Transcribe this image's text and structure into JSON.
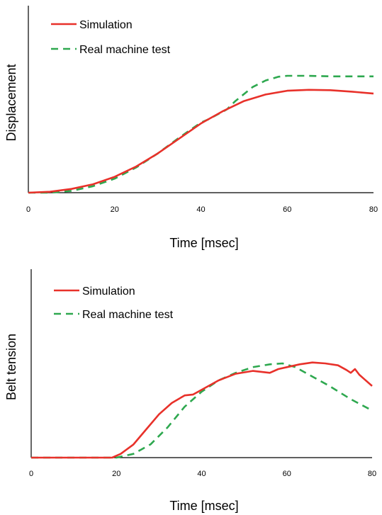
{
  "chart_data": [
    {
      "type": "line",
      "title": "",
      "xlabel": "Time [msec]",
      "ylabel": "Displacement",
      "xlim": [
        0,
        80
      ],
      "ylim": [
        0,
        1
      ],
      "xticks": [
        "0",
        "20",
        "40",
        "60",
        "80"
      ],
      "grid": false,
      "legend_position": "top-left",
      "series": [
        {
          "name": "Simulation",
          "style": "solid",
          "color": "#e8312a",
          "x": [
            0,
            5,
            10,
            15,
            20,
            25,
            30,
            35,
            40,
            45,
            50,
            55,
            60,
            65,
            70,
            75,
            80
          ],
          "y": [
            0,
            0.005,
            0.02,
            0.045,
            0.085,
            0.14,
            0.21,
            0.29,
            0.37,
            0.435,
            0.49,
            0.525,
            0.545,
            0.55,
            0.548,
            0.54,
            0.53
          ]
        },
        {
          "name": "Real machine test",
          "style": "dashed",
          "color": "#2ea84f",
          "x": [
            0,
            5,
            10,
            15,
            20,
            25,
            30,
            35,
            40,
            42,
            46,
            48,
            52,
            55,
            58,
            60,
            65,
            70,
            75,
            80
          ],
          "y": [
            0,
            0,
            0.01,
            0.035,
            0.075,
            0.135,
            0.21,
            0.295,
            0.375,
            0.395,
            0.445,
            0.49,
            0.565,
            0.6,
            0.62,
            0.625,
            0.625,
            0.622,
            0.622,
            0.622
          ]
        }
      ]
    },
    {
      "type": "line",
      "title": "",
      "xlabel": "Time [msec]",
      "ylabel": "Belt tension",
      "xlim": [
        0,
        80
      ],
      "ylim": [
        0,
        1
      ],
      "xticks": [
        "0",
        "20",
        "40",
        "60",
        "80"
      ],
      "grid": false,
      "legend_position": "top-left",
      "series": [
        {
          "name": "Simulation",
          "style": "solid",
          "color": "#e8312a",
          "x": [
            0,
            19,
            21,
            24,
            27,
            30,
            33,
            36,
            38,
            40,
            44,
            48,
            52,
            56,
            58,
            60,
            63,
            66,
            69,
            72,
            74,
            75,
            76,
            77,
            78,
            80
          ],
          "y": [
            0,
            0,
            0.02,
            0.07,
            0.15,
            0.23,
            0.29,
            0.33,
            0.335,
            0.36,
            0.41,
            0.445,
            0.46,
            0.45,
            0.47,
            0.48,
            0.495,
            0.505,
            0.5,
            0.49,
            0.465,
            0.45,
            0.47,
            0.44,
            0.42,
            0.38
          ]
        },
        {
          "name": "Real machine test",
          "style": "dashed",
          "color": "#2ea84f",
          "x": [
            0,
            20,
            24,
            28,
            32,
            36,
            40,
            44,
            48,
            52,
            56,
            59,
            62,
            66,
            70,
            75,
            80
          ],
          "y": [
            0,
            0,
            0.02,
            0.07,
            0.16,
            0.27,
            0.35,
            0.41,
            0.45,
            0.48,
            0.495,
            0.5,
            0.48,
            0.43,
            0.38,
            0.31,
            0.25
          ]
        }
      ]
    }
  ]
}
